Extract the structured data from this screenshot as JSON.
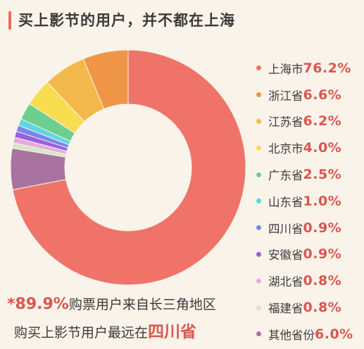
{
  "title": "买上影节的用户，并不都在上海",
  "chart_data": {
    "type": "pie",
    "donut": true,
    "start": "top",
    "direction": "clockwise",
    "slices": [
      {
        "name": "上海市",
        "value": 76.2,
        "label": "76.2%",
        "color": "#ef7369"
      },
      {
        "name": "其他省份",
        "value": 6.0,
        "label": "6.0%",
        "color": "#a9739f"
      },
      {
        "name": "福建省",
        "value": 0.8,
        "label": "0.8%",
        "color": "#d5e8c6"
      },
      {
        "name": "湖北省",
        "value": 0.8,
        "label": "0.8%",
        "color": "#e7a8e0"
      },
      {
        "name": "安徽省",
        "value": 0.9,
        "label": "0.9%",
        "color": "#9a5fe0"
      },
      {
        "name": "四川省",
        "value": 0.9,
        "label": "0.9%",
        "color": "#7a86e8"
      },
      {
        "name": "山东省",
        "value": 1.0,
        "label": "1.0%",
        "color": "#5ed6e3"
      },
      {
        "name": "广东省",
        "value": 2.5,
        "label": "2.5%",
        "color": "#6dcf8f"
      },
      {
        "name": "北京市",
        "value": 4.0,
        "label": "4.0%",
        "color": "#f7dd4f"
      },
      {
        "name": "江苏省",
        "value": 6.2,
        "label": "6.2%",
        "color": "#f2b84b"
      },
      {
        "name": "浙江省",
        "value": 6.6,
        "label": "6.6%",
        "color": "#ef9547"
      }
    ],
    "legend": [
      {
        "name": "上海市",
        "value": "76.2%",
        "color": "#ef7369"
      },
      {
        "name": "浙江省",
        "value": "6.6%",
        "color": "#ef9547"
      },
      {
        "name": "江苏省",
        "value": "6.2%",
        "color": "#f2b84b"
      },
      {
        "name": "北京市",
        "value": "4.0%",
        "color": "#f7dd4f"
      },
      {
        "name": "广东省",
        "value": "2.5%",
        "color": "#6dcf8f"
      },
      {
        "name": "山东省",
        "value": "1.0%",
        "color": "#5ed6e3"
      },
      {
        "name": "四川省",
        "value": "0.9%",
        "color": "#7a86e8"
      },
      {
        "name": "安徽省",
        "value": "0.9%",
        "color": "#9a5fe0"
      },
      {
        "name": "湖北省",
        "value": "0.8%",
        "color": "#e7a8e0"
      },
      {
        "name": "福建省",
        "value": "0.8%",
        "color": "#d5e8c6"
      },
      {
        "name": "其他省份",
        "value": "6.0%",
        "color": "#a9739f"
      }
    ],
    "legend_placement": "right"
  },
  "footer": {
    "line1_highlight": "*89.9%",
    "line1_text": "购票用户来自长三角地区",
    "line2_text": "购买上影节用户最远在",
    "line2_highlight": "四川省"
  }
}
